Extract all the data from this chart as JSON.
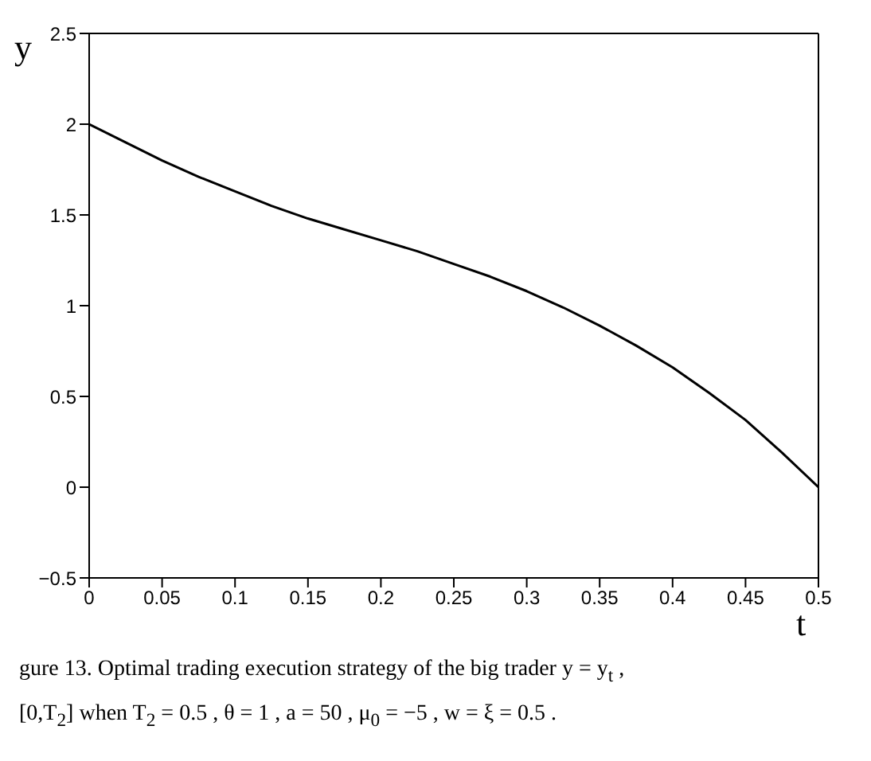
{
  "chart_data": {
    "type": "line",
    "xlabel": "t",
    "ylabel": "y",
    "x": [
      0,
      0.025,
      0.05,
      0.075,
      0.1,
      0.125,
      0.15,
      0.175,
      0.2,
      0.225,
      0.25,
      0.275,
      0.3,
      0.325,
      0.35,
      0.375,
      0.4,
      0.425,
      0.45,
      0.475,
      0.5
    ],
    "series": [
      {
        "color": "#000000",
        "values": [
          2.0,
          1.9,
          1.8,
          1.71,
          1.63,
          1.55,
          1.48,
          1.42,
          1.36,
          1.3,
          1.23,
          1.16,
          1.08,
          0.99,
          0.89,
          0.78,
          0.66,
          0.52,
          0.37,
          0.19,
          0.0
        ]
      }
    ],
    "xlim": [
      0,
      0.5
    ],
    "xticks": [
      0,
      0.05,
      0.1,
      0.15,
      0.2,
      0.25,
      0.3,
      0.35,
      0.4,
      0.45,
      0.5
    ],
    "ylim": [
      -0.5,
      2.5
    ],
    "yticks": [
      {
        "value": -0.5,
        "label": "−0.5"
      },
      0,
      0.5,
      1,
      1.5,
      2,
      2.5
    ],
    "marker": "none",
    "line_style": "solid",
    "annotations": [
      "gure 13. Optimal trading execution strategy of the big trader  y = y$_{t}$ ,",
      "[0,T$_{2}$]  when  T$_{2}$ = 0.5 ,  θ = 1 ,  a = 50 ,  μ$_{0}$ = −5 ,  w = ξ = 0.5 ."
    ]
  }
}
